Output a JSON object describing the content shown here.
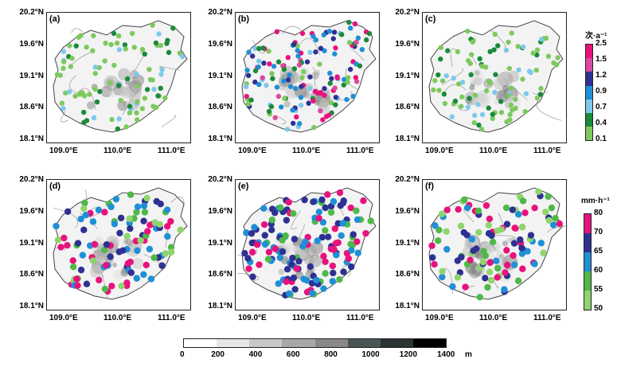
{
  "panels": [
    {
      "label": "(a)",
      "metric": "frequency",
      "density": "sparse"
    },
    {
      "label": "(b)",
      "metric": "frequency",
      "density": "dense"
    },
    {
      "label": "(c)",
      "metric": "frequency",
      "density": "sparse"
    },
    {
      "label": "(d)",
      "metric": "intensity",
      "density": "medium"
    },
    {
      "label": "(e)",
      "metric": "intensity",
      "density": "dense"
    },
    {
      "label": "(f)",
      "metric": "intensity",
      "density": "medium"
    }
  ],
  "lat_ticks": [
    "20.2°N",
    "19.6°N",
    "19.1°N",
    "18.6°N",
    "18.1°N"
  ],
  "lon_ticks": [
    "109.0°E",
    "110.0°E",
    "111.0°E"
  ],
  "legend_frequency": {
    "unit": "次·a⁻¹",
    "labels": [
      "2.5",
      "1.5",
      "1.2",
      "0.9",
      "0.7",
      "0.4",
      "0.1"
    ],
    "colors": [
      "#e8127c",
      "#d94aa0",
      "#2e3192",
      "#1f8fd6",
      "#7ec8ec",
      "#1a8a3a",
      "#7dc95e"
    ]
  },
  "legend_intensity": {
    "unit": "mm·h⁻¹",
    "labels": [
      "80",
      "70",
      "65",
      "60",
      "55",
      "50"
    ],
    "colors": [
      "#e8127c",
      "#2e3192",
      "#1f8fd6",
      "#4fb848",
      "#8fd46e"
    ]
  },
  "elevation_bar": {
    "labels": [
      "0",
      "200",
      "400",
      "600",
      "800",
      "1000",
      "1200",
      "1400"
    ],
    "unit": "m",
    "colors": [
      "#ffffff",
      "#e6e6e6",
      "#c8c8c8",
      "#a8a8a8",
      "#888888",
      "#4a5656",
      "#2a3434",
      "#000000"
    ]
  }
}
